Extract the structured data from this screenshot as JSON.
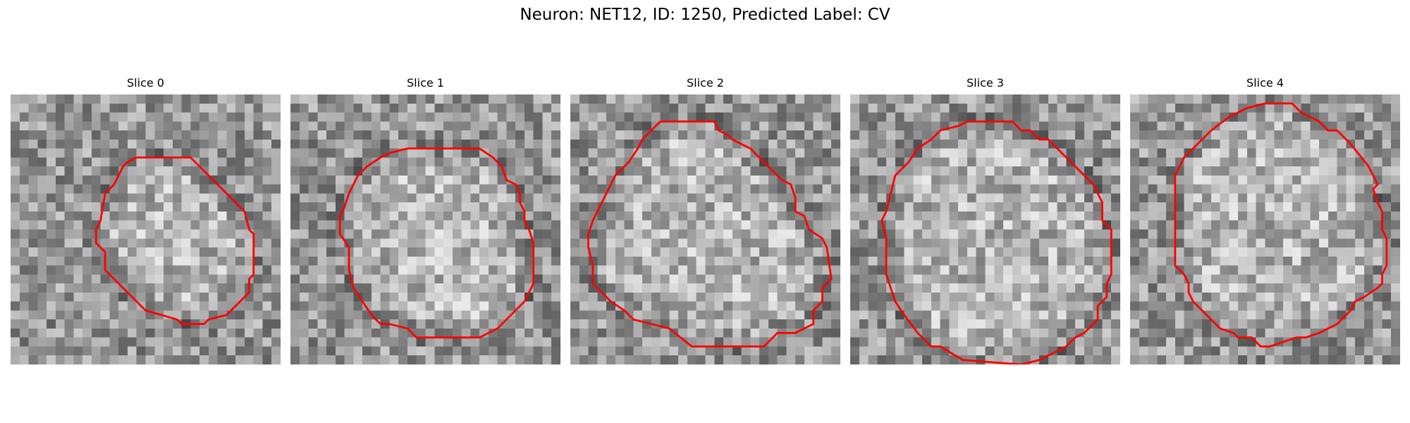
{
  "figure": {
    "title": "Neuron: NET12, ID: 1250, Predicted Label: CV",
    "contour_color": "#ff0000",
    "colormap": "gray",
    "grid_size": [
      30,
      30
    ]
  },
  "slices": [
    {
      "label": "Slice 0"
    },
    {
      "label": "Slice 1"
    },
    {
      "label": "Slice 2"
    },
    {
      "label": "Slice 3"
    },
    {
      "label": "Slice 4"
    }
  ]
}
